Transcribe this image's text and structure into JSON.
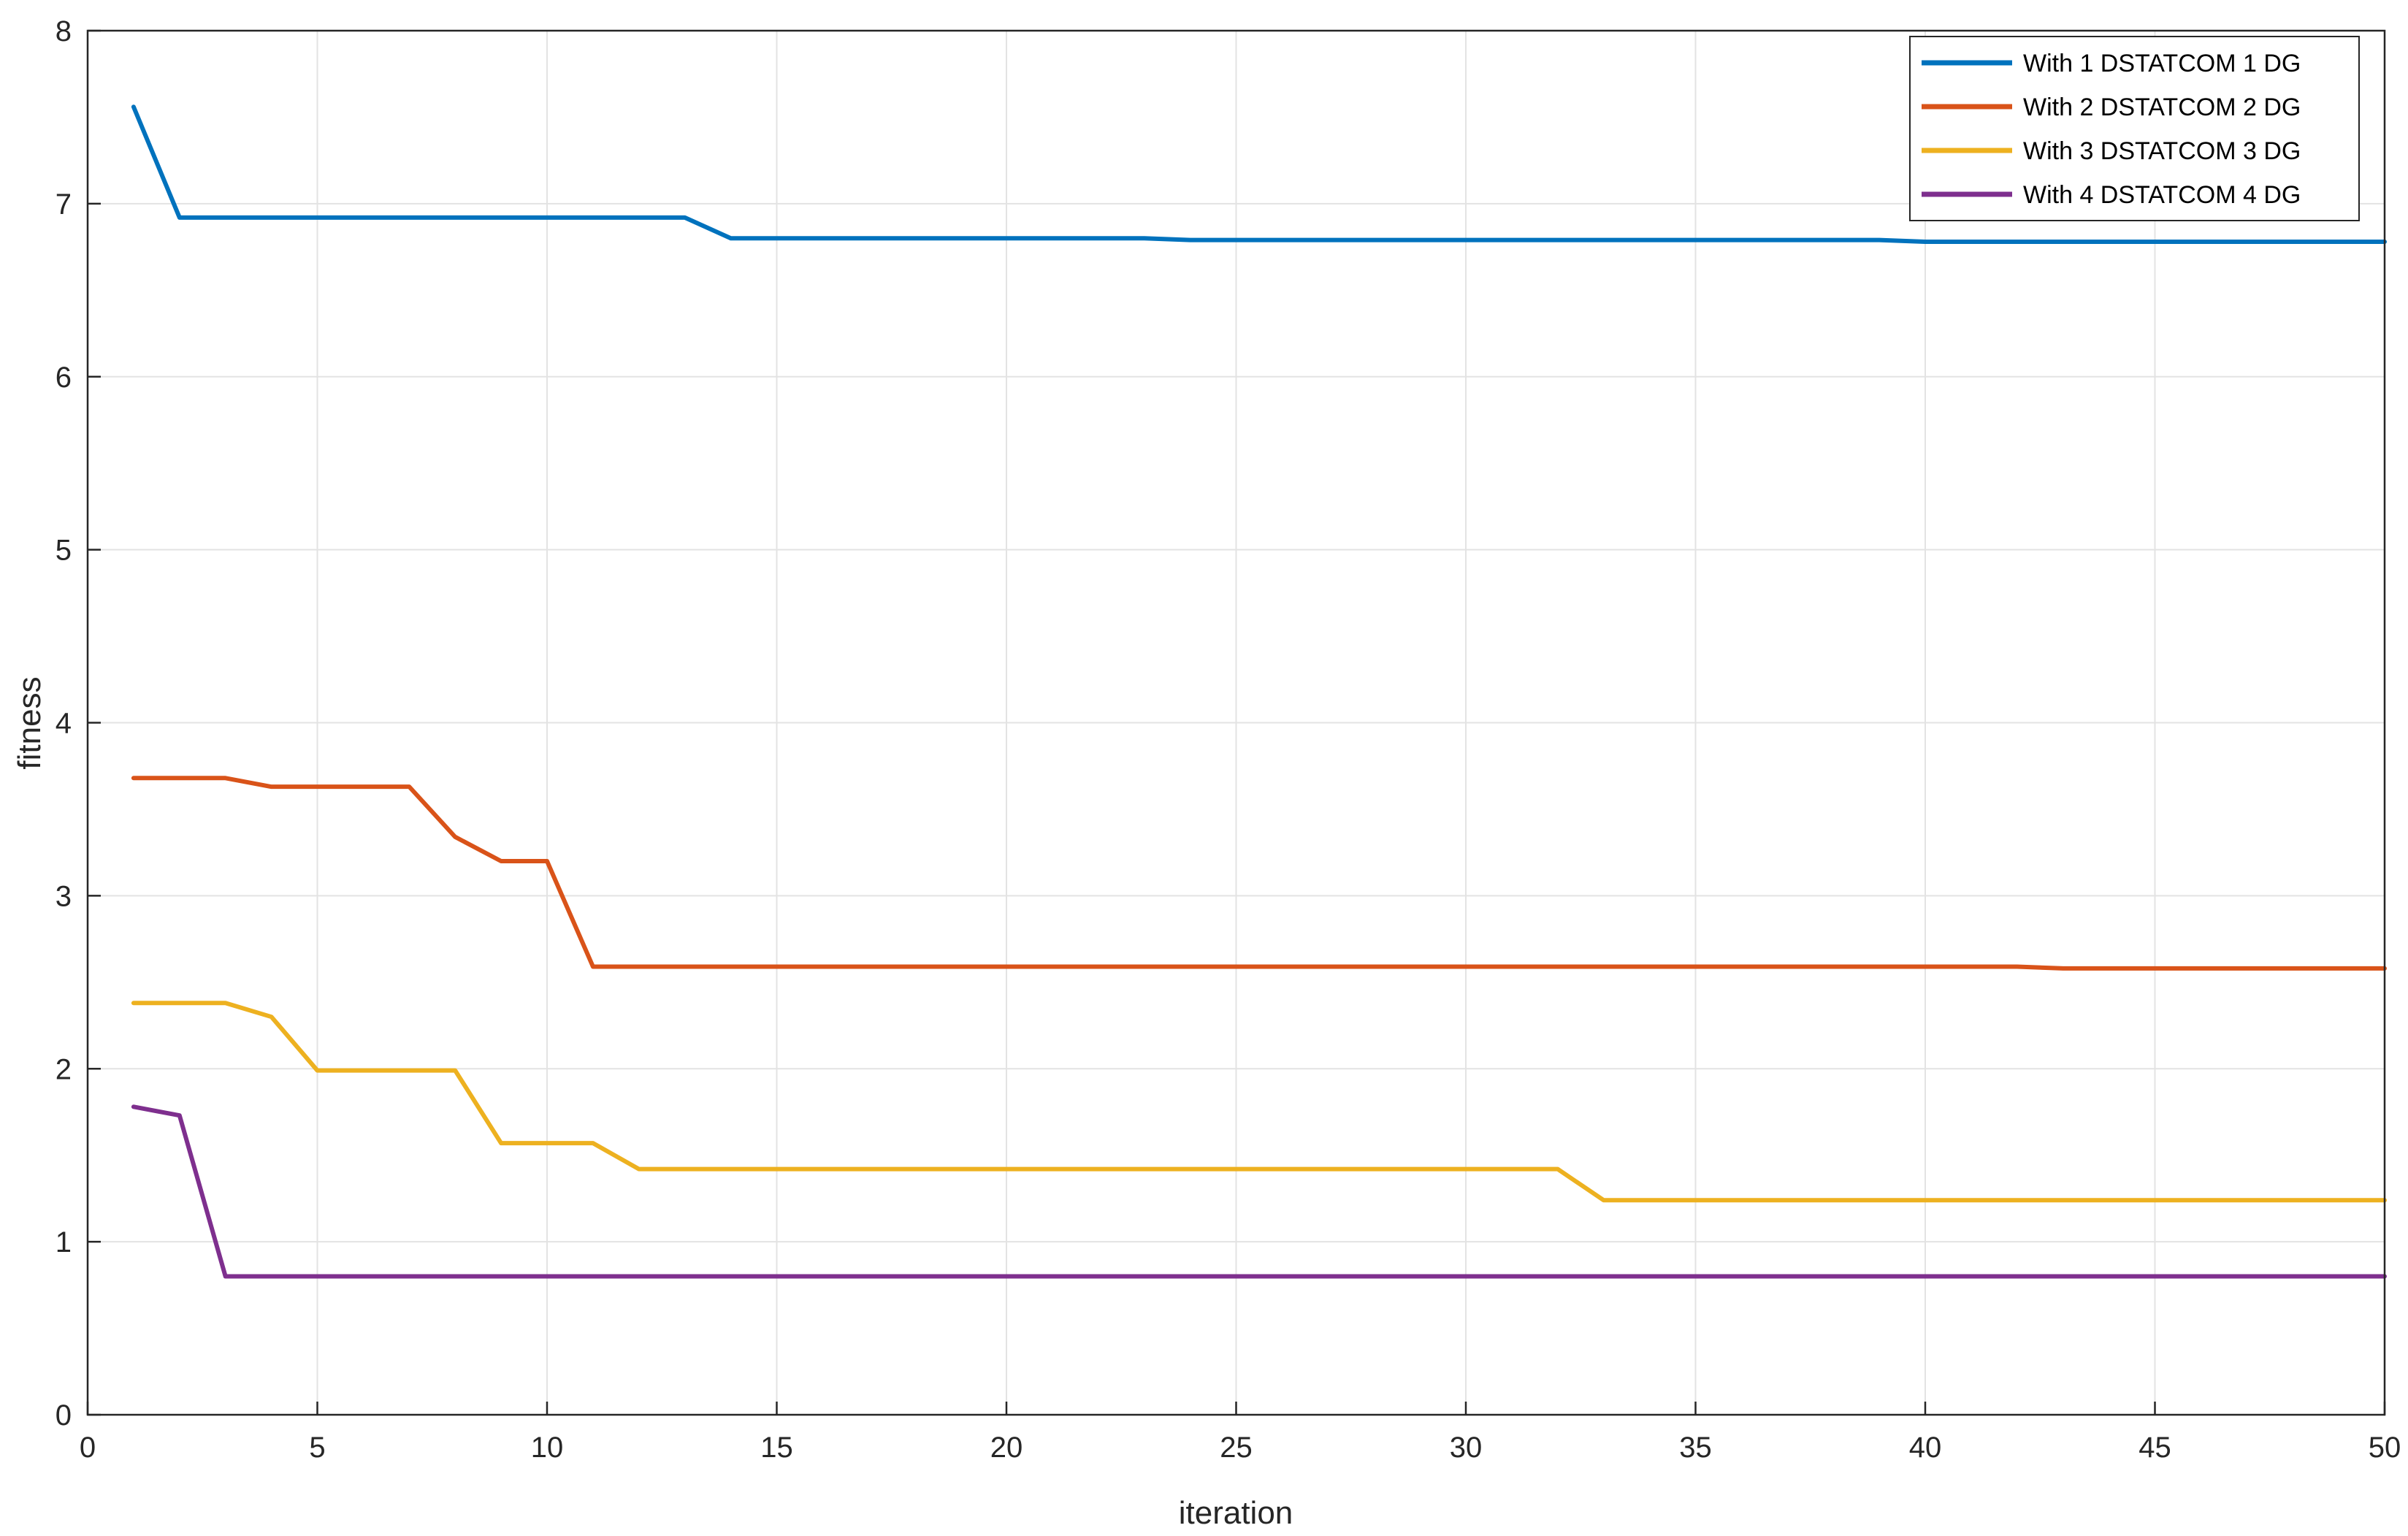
{
  "chart_data": {
    "type": "line",
    "title": "",
    "xlabel": "iteration",
    "ylabel": "fitness",
    "xlim": [
      0,
      50
    ],
    "ylim": [
      0,
      8
    ],
    "xticks": [
      0,
      5,
      10,
      15,
      20,
      25,
      30,
      35,
      40,
      45,
      50
    ],
    "yticks": [
      0,
      1,
      2,
      3,
      4,
      5,
      6,
      7,
      8
    ],
    "grid": true,
    "legend_position": "top-right",
    "x": [
      1,
      2,
      3,
      4,
      5,
      6,
      7,
      8,
      9,
      10,
      11,
      12,
      13,
      14,
      15,
      16,
      17,
      18,
      19,
      20,
      21,
      22,
      23,
      24,
      25,
      26,
      27,
      28,
      29,
      30,
      31,
      32,
      33,
      34,
      35,
      36,
      37,
      38,
      39,
      40,
      41,
      42,
      43,
      44,
      45,
      46,
      47,
      48,
      49,
      50
    ],
    "series": [
      {
        "name": "With 1  DSTATCOM 1  DG",
        "color": "#0072BD",
        "values": [
          7.56,
          6.92,
          6.92,
          6.92,
          6.92,
          6.92,
          6.92,
          6.92,
          6.92,
          6.92,
          6.92,
          6.92,
          6.92,
          6.8,
          6.8,
          6.8,
          6.8,
          6.8,
          6.8,
          6.8,
          6.8,
          6.8,
          6.8,
          6.79,
          6.79,
          6.79,
          6.79,
          6.79,
          6.79,
          6.79,
          6.79,
          6.79,
          6.79,
          6.79,
          6.79,
          6.79,
          6.79,
          6.79,
          6.79,
          6.78,
          6.78,
          6.78,
          6.78,
          6.78,
          6.78,
          6.78,
          6.78,
          6.78,
          6.78,
          6.78
        ]
      },
      {
        "name": "With 2  DSTATCOM 2  DG",
        "color": "#D95319",
        "values": [
          3.68,
          3.68,
          3.68,
          3.63,
          3.63,
          3.63,
          3.63,
          3.34,
          3.2,
          3.2,
          2.59,
          2.59,
          2.59,
          2.59,
          2.59,
          2.59,
          2.59,
          2.59,
          2.59,
          2.59,
          2.59,
          2.59,
          2.59,
          2.59,
          2.59,
          2.59,
          2.59,
          2.59,
          2.59,
          2.59,
          2.59,
          2.59,
          2.59,
          2.59,
          2.59,
          2.59,
          2.59,
          2.59,
          2.59,
          2.59,
          2.59,
          2.59,
          2.58,
          2.58,
          2.58,
          2.58,
          2.58,
          2.58,
          2.58,
          2.58
        ]
      },
      {
        "name": "With 3  DSTATCOM 3  DG",
        "color": "#EDB120",
        "values": [
          2.38,
          2.38,
          2.38,
          2.3,
          1.99,
          1.99,
          1.99,
          1.99,
          1.57,
          1.57,
          1.57,
          1.42,
          1.42,
          1.42,
          1.42,
          1.42,
          1.42,
          1.42,
          1.42,
          1.42,
          1.42,
          1.42,
          1.42,
          1.42,
          1.42,
          1.42,
          1.42,
          1.42,
          1.42,
          1.42,
          1.42,
          1.42,
          1.24,
          1.24,
          1.24,
          1.24,
          1.24,
          1.24,
          1.24,
          1.24,
          1.24,
          1.24,
          1.24,
          1.24,
          1.24,
          1.24,
          1.24,
          1.24,
          1.24,
          1.24
        ]
      },
      {
        "name": "With 4  DSTATCOM 4  DG",
        "color": "#7E2F8E",
        "values": [
          1.78,
          1.73,
          0.8,
          0.8,
          0.8,
          0.8,
          0.8,
          0.8,
          0.8,
          0.8,
          0.8,
          0.8,
          0.8,
          0.8,
          0.8,
          0.8,
          0.8,
          0.8,
          0.8,
          0.8,
          0.8,
          0.8,
          0.8,
          0.8,
          0.8,
          0.8,
          0.8,
          0.8,
          0.8,
          0.8,
          0.8,
          0.8,
          0.8,
          0.8,
          0.8,
          0.8,
          0.8,
          0.8,
          0.8,
          0.8,
          0.8,
          0.8,
          0.8,
          0.8,
          0.8,
          0.8,
          0.8,
          0.8,
          0.8,
          0.8
        ]
      }
    ]
  }
}
